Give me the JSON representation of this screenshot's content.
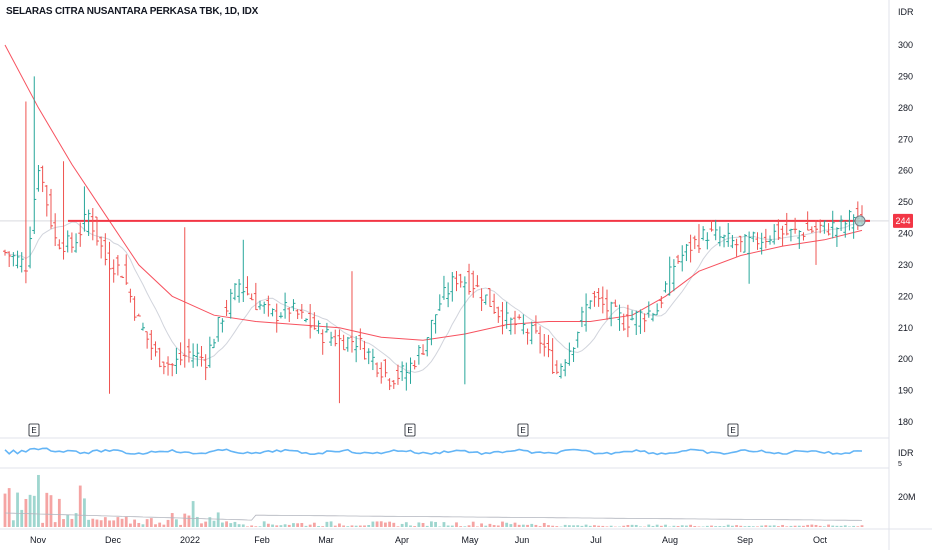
{
  "chart_data": {
    "type": "ohlc",
    "title": "SELARAS CITRA NUSANTARA PERKASA TBK, 1D, IDX",
    "currency": "IDR",
    "price_axis": {
      "ticks": [
        "300",
        "290",
        "280",
        "270",
        "260",
        "250",
        "240",
        "230",
        "220",
        "210",
        "200",
        "190",
        "180"
      ],
      "range": [
        174,
        307
      ]
    },
    "osc_axis": {
      "label": "IDR",
      "sub": "5"
    },
    "volume_axis": {
      "ticks": [
        "20M"
      ]
    },
    "x_ticks": [
      "Nov",
      "Dec",
      "2022",
      "Feb",
      "Mar",
      "Apr",
      "May",
      "Jun",
      "Jul",
      "Aug",
      "Sep",
      "Oct"
    ],
    "resistance": {
      "level": 244,
      "label": "244",
      "color": "#f23645"
    },
    "last_price": 244,
    "colors": {
      "up": "#26a69a",
      "down": "#ef5350",
      "ma": "#f7525f",
      "ma2": "#d1d4dc",
      "osc": "#64b5f6",
      "vol_up": "#9fd6cf",
      "vol_down": "#f5a4a3"
    },
    "earnings_markers": [
      "E",
      "E",
      "E",
      "E"
    ],
    "anchors": [
      {
        "i": 0,
        "p": 234
      },
      {
        "i": 5,
        "p": 230
      },
      {
        "i": 8,
        "p": 262
      },
      {
        "i": 12,
        "p": 238
      },
      {
        "i": 16,
        "p": 236
      },
      {
        "i": 20,
        "p": 246
      },
      {
        "i": 24,
        "p": 232
      },
      {
        "i": 28,
        "p": 228
      },
      {
        "i": 32,
        "p": 212
      },
      {
        "i": 36,
        "p": 201
      },
      {
        "i": 40,
        "p": 198
      },
      {
        "i": 44,
        "p": 202
      },
      {
        "i": 48,
        "p": 200
      },
      {
        "i": 52,
        "p": 214
      },
      {
        "i": 56,
        "p": 224
      },
      {
        "i": 60,
        "p": 218
      },
      {
        "i": 64,
        "p": 214
      },
      {
        "i": 68,
        "p": 216
      },
      {
        "i": 72,
        "p": 212
      },
      {
        "i": 76,
        "p": 208
      },
      {
        "i": 80,
        "p": 206
      },
      {
        "i": 84,
        "p": 206
      },
      {
        "i": 88,
        "p": 200
      },
      {
        "i": 92,
        "p": 194
      },
      {
        "i": 96,
        "p": 196
      },
      {
        "i": 100,
        "p": 204
      },
      {
        "i": 104,
        "p": 218
      },
      {
        "i": 108,
        "p": 226
      },
      {
        "i": 112,
        "p": 224
      },
      {
        "i": 116,
        "p": 218
      },
      {
        "i": 120,
        "p": 212
      },
      {
        "i": 124,
        "p": 210
      },
      {
        "i": 128,
        "p": 206
      },
      {
        "i": 132,
        "p": 196
      },
      {
        "i": 136,
        "p": 206
      },
      {
        "i": 140,
        "p": 220
      },
      {
        "i": 144,
        "p": 216
      },
      {
        "i": 148,
        "p": 212
      },
      {
        "i": 152,
        "p": 214
      },
      {
        "i": 156,
        "p": 216
      },
      {
        "i": 160,
        "p": 230
      },
      {
        "i": 164,
        "p": 236
      },
      {
        "i": 168,
        "p": 240
      },
      {
        "i": 172,
        "p": 238
      },
      {
        "i": 176,
        "p": 236
      },
      {
        "i": 180,
        "p": 238
      },
      {
        "i": 184,
        "p": 240
      },
      {
        "i": 188,
        "p": 240
      },
      {
        "i": 192,
        "p": 241
      },
      {
        "i": 196,
        "p": 242
      },
      {
        "i": 200,
        "p": 242
      },
      {
        "i": 203,
        "p": 246
      },
      {
        "i": 205,
        "p": 244
      }
    ],
    "spikes": [
      {
        "i": 7,
        "h": 290
      },
      {
        "i": 5,
        "h": 282
      },
      {
        "i": 14,
        "h": 263
      },
      {
        "i": 19,
        "h": 255
      },
      {
        "i": 43,
        "h": 242
      },
      {
        "i": 57,
        "h": 238
      },
      {
        "i": 83,
        "h": 228
      },
      {
        "i": 166,
        "h": 243
      },
      {
        "i": 184,
        "h": 243
      }
    ],
    "dips": [
      {
        "i": 25,
        "l": 189
      },
      {
        "i": 80,
        "l": 186
      },
      {
        "i": 96,
        "l": 190
      },
      {
        "i": 110,
        "l": 192
      },
      {
        "i": 178,
        "l": 224
      },
      {
        "i": 194,
        "l": 230
      }
    ],
    "n": 206,
    "ma_points": [
      {
        "i": 0,
        "p": 300
      },
      {
        "i": 8,
        "p": 280
      },
      {
        "i": 16,
        "p": 262
      },
      {
        "i": 24,
        "p": 246
      },
      {
        "i": 32,
        "p": 230
      },
      {
        "i": 40,
        "p": 220
      },
      {
        "i": 50,
        "p": 214
      },
      {
        "i": 60,
        "p": 212
      },
      {
        "i": 70,
        "p": 211
      },
      {
        "i": 80,
        "p": 210
      },
      {
        "i": 90,
        "p": 207
      },
      {
        "i": 100,
        "p": 206
      },
      {
        "i": 110,
        "p": 208
      },
      {
        "i": 120,
        "p": 211
      },
      {
        "i": 130,
        "p": 212
      },
      {
        "i": 140,
        "p": 212
      },
      {
        "i": 150,
        "p": 214
      },
      {
        "i": 158,
        "p": 220
      },
      {
        "i": 166,
        "p": 228
      },
      {
        "i": 176,
        "p": 233
      },
      {
        "i": 186,
        "p": 236
      },
      {
        "i": 196,
        "p": 238
      },
      {
        "i": 205,
        "p": 241
      }
    ]
  }
}
